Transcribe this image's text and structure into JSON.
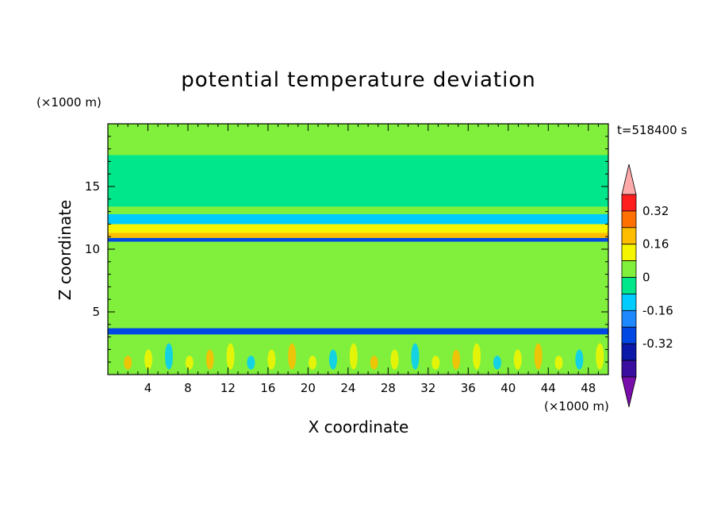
{
  "chart_data": {
    "type": "heatmap",
    "title": "potential temperature deviation",
    "time_label": "t=518400 s",
    "xlabel": "X coordinate",
    "ylabel": "Z coordinate",
    "x_unit": "(×1000 m)",
    "z_unit": "(×1000 m)",
    "x_range": [
      0,
      50
    ],
    "z_range": [
      0,
      20
    ],
    "x_ticks": [
      4,
      8,
      12,
      16,
      20,
      24,
      28,
      32,
      36,
      40,
      44,
      48
    ],
    "z_ticks": [
      5,
      10,
      15
    ],
    "colorbar": {
      "labels": [
        "0.32",
        "0.16",
        "0",
        "-0.16",
        "-0.32"
      ],
      "label_values": [
        0.32,
        0.16,
        0,
        -0.16,
        -0.32
      ],
      "levels": [
        -0.48,
        -0.4,
        -0.32,
        -0.24,
        -0.16,
        -0.08,
        0,
        0.08,
        0.16,
        0.24,
        0.32,
        0.4
      ],
      "colors": [
        "#7a0eaa",
        "#3a0fa0",
        "#0c18a8",
        "#0047e4",
        "#1e88ff",
        "#00ccff",
        "#00e68a",
        "#80f03c",
        "#f5f500",
        "#ffbd00",
        "#ff7000",
        "#ff1e1e",
        "#ffaaaa"
      ]
    },
    "bands": [
      {
        "z": [
          0.2,
          3.2
        ],
        "value": 0.05
      },
      {
        "z": [
          3.2,
          3.7
        ],
        "value": -0.3
      },
      {
        "z": [
          3.7,
          10.6
        ],
        "value": 0.03
      },
      {
        "z": [
          10.6,
          10.9
        ],
        "value": -0.3
      },
      {
        "z": [
          10.9,
          11.3
        ],
        "value": 0.2
      },
      {
        "z": [
          11.3,
          12.0
        ],
        "value": 0.1
      },
      {
        "z": [
          12.0,
          12.8
        ],
        "value": -0.1
      },
      {
        "z": [
          12.8,
          13.4
        ],
        "value": 0.05
      },
      {
        "z": [
          13.4,
          17.5
        ],
        "value": -0.04
      },
      {
        "z": [
          17.5,
          20
        ],
        "value": 0.04
      }
    ]
  }
}
